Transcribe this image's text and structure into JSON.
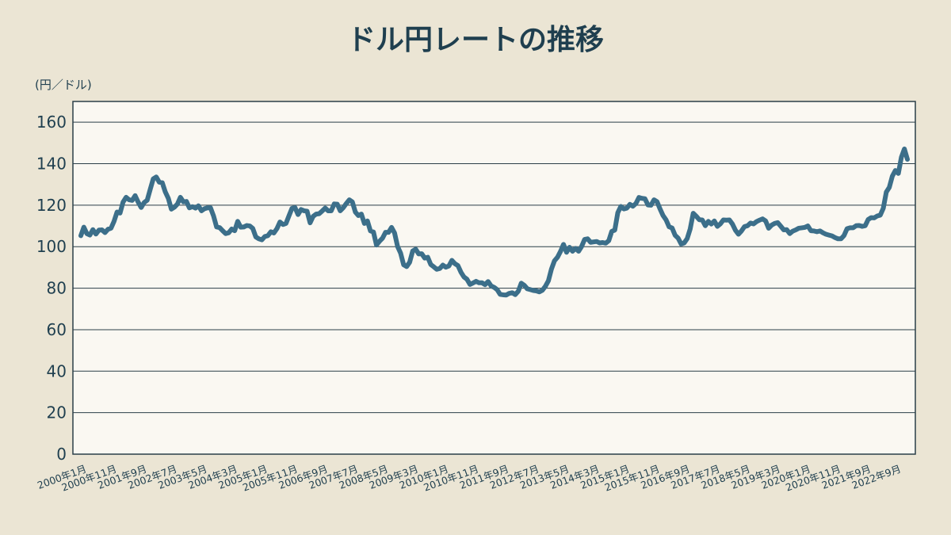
{
  "chart_data": {
    "type": "line",
    "title": "ドル円レートの推移",
    "y_axis_label": "(円／ドル)",
    "categories": [
      "2000年1月",
      null,
      null,
      null,
      null,
      null,
      null,
      null,
      null,
      null,
      "2000年11月",
      null,
      null,
      null,
      null,
      null,
      null,
      null,
      null,
      null,
      "2001年9月",
      null,
      null,
      null,
      null,
      null,
      null,
      null,
      null,
      null,
      "2002年7月",
      null,
      null,
      null,
      null,
      null,
      null,
      null,
      null,
      null,
      "2003年5月",
      null,
      null,
      null,
      null,
      null,
      null,
      null,
      null,
      null,
      "2004年3月",
      null,
      null,
      null,
      null,
      null,
      null,
      null,
      null,
      null,
      "2005年1月",
      null,
      null,
      null,
      null,
      null,
      null,
      null,
      null,
      null,
      "2005年11月",
      null,
      null,
      null,
      null,
      null,
      null,
      null,
      null,
      null,
      "2006年9月",
      null,
      null,
      null,
      null,
      null,
      null,
      null,
      null,
      null,
      "2007年7月",
      null,
      null,
      null,
      null,
      null,
      null,
      null,
      null,
      null,
      "2008年5月",
      null,
      null,
      null,
      null,
      null,
      null,
      null,
      null,
      null,
      "2009年3月",
      null,
      null,
      null,
      null,
      null,
      null,
      null,
      null,
      null,
      "2010年1月",
      null,
      null,
      null,
      null,
      null,
      null,
      null,
      null,
      null,
      "2010年11月",
      null,
      null,
      null,
      null,
      null,
      null,
      null,
      null,
      null,
      "2011年9月",
      null,
      null,
      null,
      null,
      null,
      null,
      null,
      null,
      null,
      "2012年7月",
      null,
      null,
      null,
      null,
      null,
      null,
      null,
      null,
      null,
      "2013年5月",
      null,
      null,
      null,
      null,
      null,
      null,
      null,
      null,
      null,
      "2014年3月",
      null,
      null,
      null,
      null,
      null,
      null,
      null,
      null,
      null,
      "2015年1月",
      null,
      null,
      null,
      null,
      null,
      null,
      null,
      null,
      null,
      "2015年11月",
      null,
      null,
      null,
      null,
      null,
      null,
      null,
      null,
      null,
      "2016年9月",
      null,
      null,
      null,
      null,
      null,
      null,
      null,
      null,
      null,
      "2017年7月",
      null,
      null,
      null,
      null,
      null,
      null,
      null,
      null,
      null,
      "2018年5月",
      null,
      null,
      null,
      null,
      null,
      null,
      null,
      null,
      null,
      "2019年3月",
      null,
      null,
      null,
      null,
      null,
      null,
      null,
      null,
      null,
      "2020年1月",
      null,
      null,
      null,
      null,
      null,
      null,
      null,
      null,
      null,
      "2020年11月",
      null,
      null,
      null,
      null,
      null,
      null,
      null,
      null,
      null,
      "2021年9月",
      null,
      null,
      null,
      null,
      null,
      null,
      null,
      null,
      null,
      "2022年9月",
      null,
      null,
      null,
      null
    ],
    "series": [
      {
        "color": "#3c6f8a",
        "values": [
          105.3,
          109.4,
          106.3,
          105.6,
          108.2,
          106.1,
          108.0,
          108.1,
          106.8,
          108.4,
          108.9,
          112.2,
          116.7,
          116.2,
          121.5,
          123.8,
          122.6,
          122.3,
          124.6,
          121.5,
          118.9,
          121.3,
          122.4,
          127.6,
          132.7,
          133.6,
          131.1,
          130.8,
          126.4,
          123.3,
          118.1,
          119.0,
          120.5,
          123.8,
          121.6,
          121.8,
          118.7,
          119.3,
          118.6,
          119.7,
          117.3,
          118.3,
          118.7,
          118.7,
          114.8,
          109.5,
          109.2,
          107.7,
          106.3,
          106.7,
          108.5,
          107.7,
          112.2,
          109.4,
          109.5,
          110.2,
          110.0,
          108.8,
          104.7,
          103.8,
          103.3,
          104.9,
          105.3,
          107.2,
          106.6,
          108.7,
          111.9,
          110.7,
          111.2,
          114.9,
          118.5,
          118.8,
          115.5,
          117.9,
          117.3,
          117.1,
          111.5,
          114.6,
          115.7,
          115.9,
          117.2,
          118.6,
          117.3,
          117.3,
          120.6,
          120.5,
          117.3,
          118.8,
          120.8,
          122.6,
          121.6,
          116.7,
          115.0,
          115.7,
          111.2,
          112.4,
          107.6,
          107.1,
          100.8,
          102.6,
          104.1,
          106.9,
          106.9,
          109.3,
          106.6,
          100.1,
          96.9,
          91.3,
          90.4,
          92.5,
          97.9,
          98.8,
          96.5,
          96.6,
          94.5,
          94.9,
          91.4,
          90.3,
          89.1,
          89.5,
          91.1,
          90.1,
          90.7,
          93.4,
          91.8,
          90.9,
          87.7,
          85.4,
          84.3,
          81.8,
          82.5,
          83.3,
          82.6,
          82.6,
          81.7,
          83.2,
          81.1,
          80.4,
          79.3,
          77.0,
          76.8,
          76.7,
          77.5,
          77.8,
          76.9,
          78.5,
          82.4,
          81.4,
          79.7,
          79.3,
          78.9,
          78.7,
          78.2,
          79.0,
          80.9,
          83.6,
          89.2,
          93.2,
          94.9,
          97.7,
          101.1,
          97.3,
          99.7,
          97.8,
          99.2,
          97.8,
          100.1,
          103.5,
          103.8,
          102.1,
          102.3,
          102.5,
          101.8,
          102.0,
          101.7,
          102.9,
          107.4,
          108.0,
          116.4,
          119.4,
          118.2,
          118.6,
          120.4,
          119.5,
          120.8,
          123.7,
          123.3,
          123.1,
          120.1,
          120.0,
          122.6,
          121.7,
          118.2,
          115.0,
          112.9,
          109.6,
          109.0,
          105.5,
          104.1,
          101.3,
          101.8,
          103.9,
          108.6,
          116.1,
          114.7,
          113.0,
          112.9,
          110.1,
          112.2,
          110.9,
          112.4,
          109.8,
          111.0,
          112.9,
          112.8,
          112.9,
          110.9,
          107.9,
          106.0,
          107.6,
          109.7,
          110.1,
          111.4,
          111.0,
          112.1,
          112.8,
          113.4,
          112.4,
          108.9,
          110.4,
          111.2,
          111.6,
          109.9,
          108.1,
          108.2,
          106.3,
          107.5,
          108.1,
          108.9,
          109.1,
          109.3,
          110.0,
          107.7,
          107.6,
          107.2,
          107.6,
          106.7,
          106.0,
          105.6,
          105.2,
          104.4,
          103.8,
          103.8,
          105.4,
          108.7,
          109.1,
          109.1,
          110.1,
          110.2,
          109.8,
          110.1,
          113.1,
          114.0,
          113.9,
          114.8,
          115.2,
          118.5,
          126.3,
          128.6,
          134.0,
          136.7,
          135.3,
          143.1,
          147.1,
          142.1
        ]
      }
    ],
    "ylim": [
      0,
      170
    ],
    "yticks": [
      0,
      20,
      40,
      60,
      80,
      100,
      120,
      140,
      160
    ],
    "grid": true
  }
}
